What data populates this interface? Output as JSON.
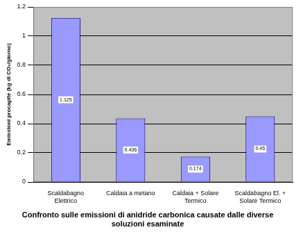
{
  "chart_data": {
    "type": "bar",
    "x_label": "Confronto sulle emissioni di anidride carbonica causate dalle diverse soluzioni esaminate",
    "y_label": "Emissioni procapite (kg di CO₂/giorno)",
    "categories": [
      "Scaldabagno Elettrico",
      "Caldaia a metano",
      "Caldaia + Solare Termico",
      "Scaldabagno El. + Solare Termico"
    ],
    "values": [
      1.125,
      0.436,
      0.174,
      0.45
    ],
    "color": "#9999ff",
    "ylim": [
      0,
      1.2
    ],
    "yticks": [
      0,
      0.2,
      0.4,
      0.6,
      0.8,
      1,
      1.2
    ],
    "grid": true,
    "data_labels": true
  }
}
